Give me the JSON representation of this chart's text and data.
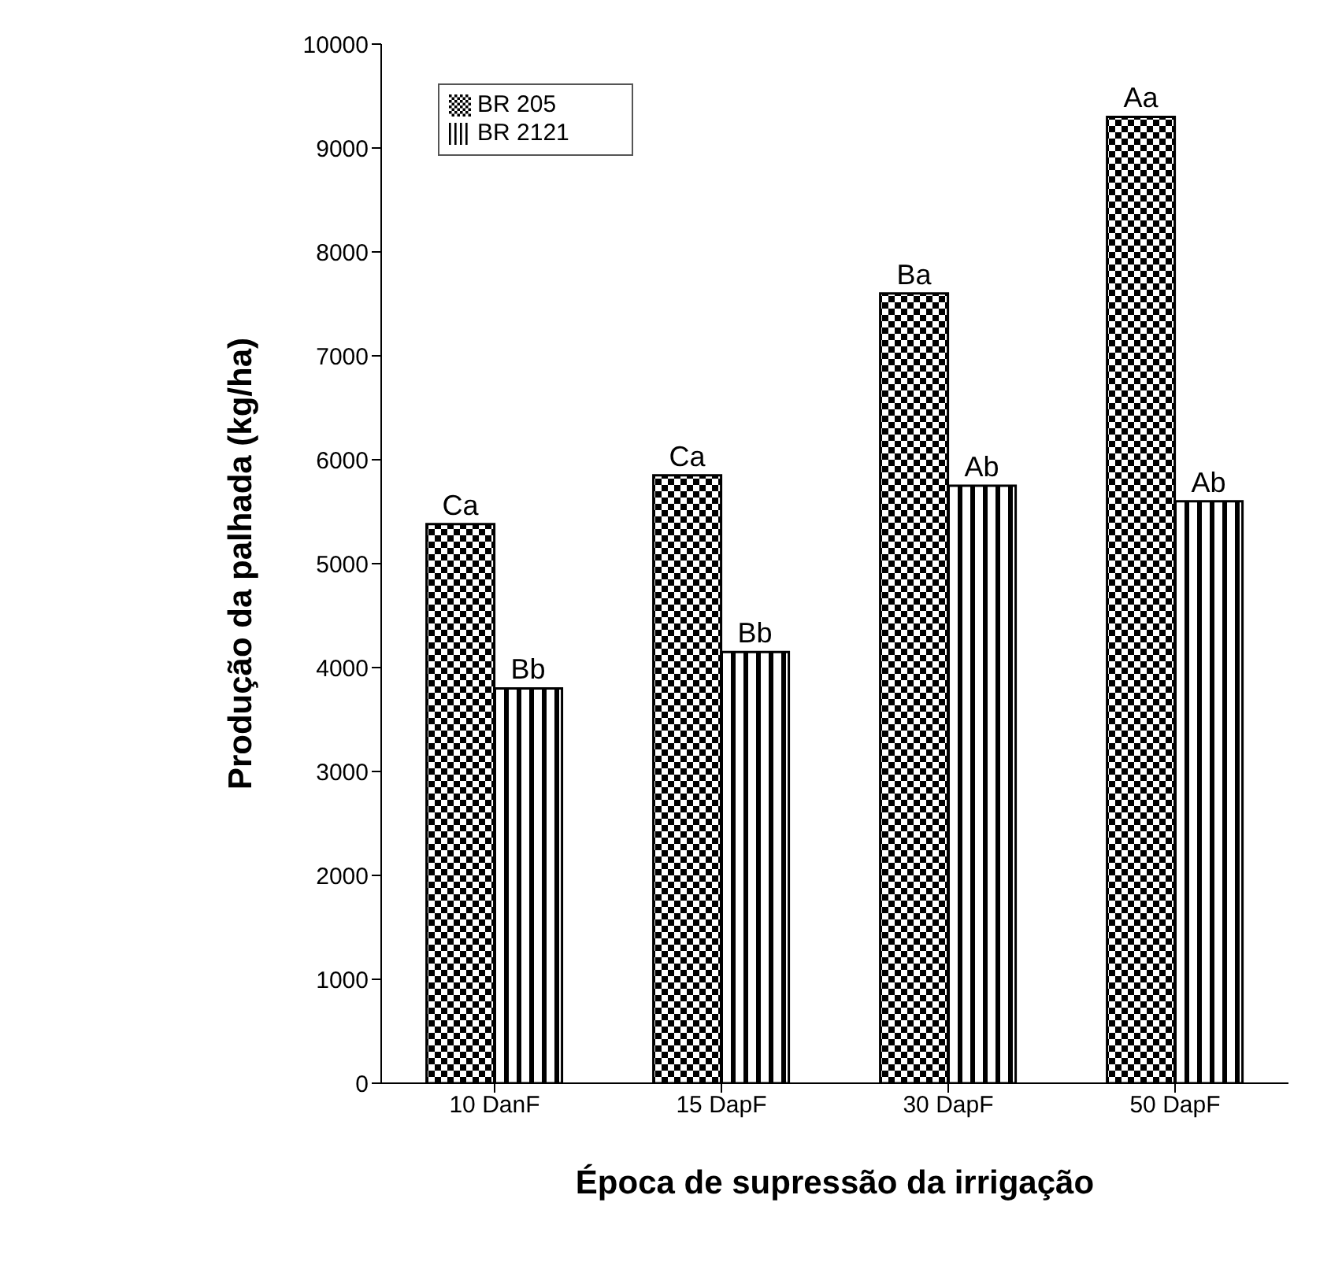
{
  "chart_data": {
    "type": "bar",
    "xlabel": "Época de supressão da irrigação",
    "ylabel": "Produção da palhada (kg/ha)",
    "categories": [
      "10 DanF",
      "15 DapF",
      "30 DapF",
      "50 DapF"
    ],
    "series": [
      {
        "name": "BR 205",
        "color": "#000000",
        "values": [
          5380,
          5850,
          7600,
          9300
        ],
        "value_labels": [
          "Ca",
          "Ca",
          "Ba",
          "Aa"
        ]
      },
      {
        "name": "BR 2121",
        "color": "#000000",
        "values": [
          3800,
          4150,
          5750,
          5600
        ],
        "value_labels": [
          "Bb",
          "Bb",
          "Ab",
          "Ab"
        ]
      }
    ],
    "ylim": [
      0,
      10000
    ],
    "yticks": [
      0,
      1000,
      2000,
      3000,
      4000,
      5000,
      6000,
      7000,
      8000,
      9000,
      10000
    ],
    "grid": false,
    "legend": "top left"
  }
}
